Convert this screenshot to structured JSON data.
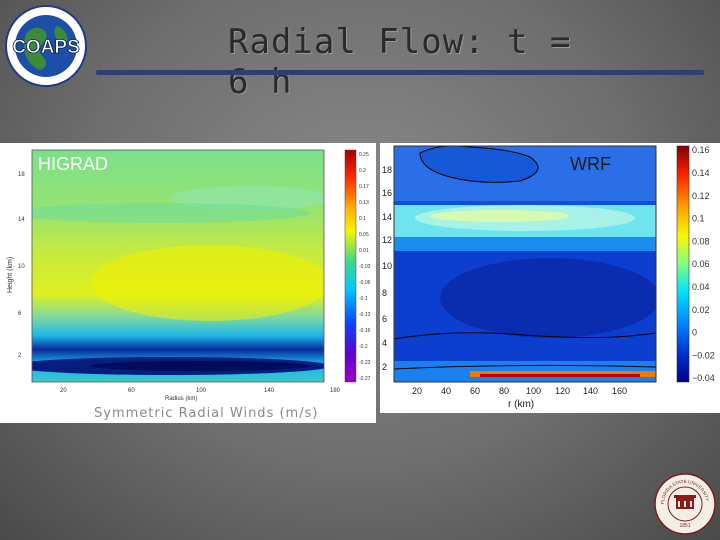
{
  "slide": {
    "title": "Radial Flow:  t = 6 h",
    "logo_text": "COAPS",
    "accent_color": "#2f3e75"
  },
  "higrad": {
    "label": "HIGRAD",
    "xlabel": "Radius (km)",
    "ylabel": "Height (km)",
    "x_ticks": [
      "20",
      "60",
      "100",
      "140",
      "180"
    ],
    "y_ticks": [
      "2",
      "6",
      "10",
      "14",
      "18"
    ],
    "colorbar_ticks": [
      "0.25",
      "0.2",
      "0.17",
      "0.13",
      "0.1",
      "0.05",
      "0.01",
      "-0.03",
      "-0.06",
      "-0.1",
      "-0.13",
      "-0.16",
      "-0.2",
      "-0.23",
      "-0.27"
    ],
    "caption": "Symmetric Radial Winds (m/s)"
  },
  "wrf": {
    "label": "WRF",
    "xlabel": "r (km)",
    "x_ticks": [
      "20",
      "40",
      "60",
      "80",
      "100",
      "120",
      "140",
      "160"
    ],
    "y_ticks": [
      "2",
      "4",
      "6",
      "8",
      "10",
      "12",
      "14",
      "16",
      "18"
    ],
    "colorbar_ticks": [
      "0.16",
      "0.14",
      "0.12",
      "0.1",
      "0.08",
      "0.06",
      "0.04",
      "0.02",
      "0",
      "−0.02",
      "−0.04"
    ]
  },
  "seal": {
    "text": "FLORIDA STATE UNIVERSITY",
    "year": "1851"
  }
}
